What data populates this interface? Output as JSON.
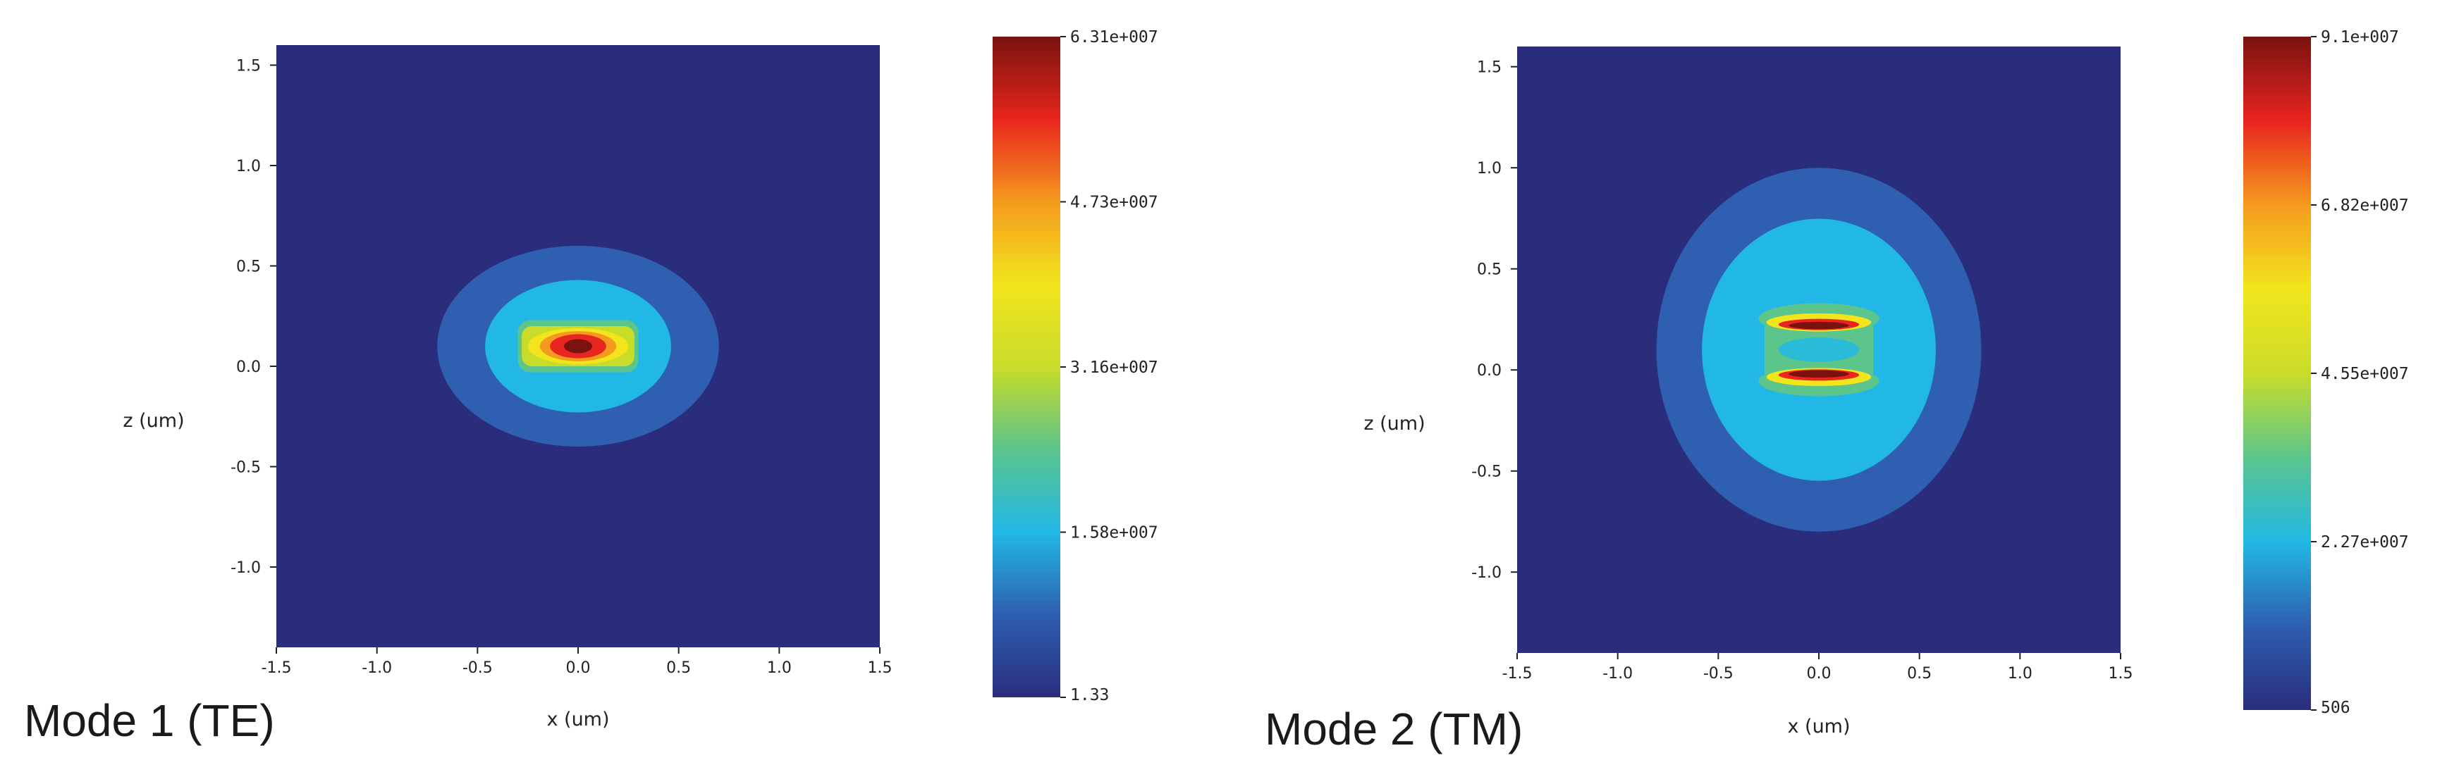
{
  "chart_data": [
    {
      "type": "heatmap",
      "title": "Mode 1 (TE)",
      "xlabel": "x (um)",
      "ylabel": "z (um)",
      "xlim": [
        -1.5,
        1.5
      ],
      "ylim": [
        -1.4,
        1.6
      ],
      "x_ticks": [
        "-1.5",
        "-1.0",
        "-0.5",
        "0.0",
        "0.5",
        "1.0",
        "1.5"
      ],
      "y_ticks": [
        "1.5",
        "1.0",
        "0.5",
        "0.0",
        "-0.5",
        "-1.0"
      ],
      "colorbar": {
        "min": 1.33,
        "max": 63100000,
        "ticks": [
          "6.31e+007",
          "4.73e+007",
          "3.16e+007",
          "1.58e+007",
          "1.33"
        ]
      },
      "colormap": [
        "#2a2d7c",
        "#2e5fb0",
        "#22b8e6",
        "#5bc58c",
        "#c9dc2a",
        "#f2e51c",
        "#f59a1e",
        "#e8251e",
        "#7a1210"
      ],
      "field": {
        "center": [
          0.0,
          0.1
        ],
        "peak": 63100000,
        "core_halfwidth": [
          0.3,
          0.11
        ],
        "halo_extent": [
          0.7,
          0.5
        ]
      }
    },
    {
      "type": "heatmap",
      "title": "Mode 2 (TM)",
      "xlabel": "x (um)",
      "ylabel": "z (um)",
      "xlim": [
        -1.5,
        1.5
      ],
      "ylim": [
        -1.4,
        1.6
      ],
      "x_ticks": [
        "-1.5",
        "-1.0",
        "-0.5",
        "0.0",
        "0.5",
        "1.0",
        "1.5"
      ],
      "y_ticks": [
        "1.5",
        "1.0",
        "0.5",
        "0.0",
        "-0.5",
        "-1.0"
      ],
      "colorbar": {
        "min": 506,
        "max": 91000000,
        "ticks": [
          "9.1e+007",
          "6.82e+007",
          "4.55e+007",
          "2.27e+007",
          "506"
        ]
      },
      "colormap": [
        "#2a2d7c",
        "#2e5fb0",
        "#22b8e6",
        "#5bc58c",
        "#c9dc2a",
        "#f2e51c",
        "#f59a1e",
        "#e8251e",
        "#7a1210"
      ],
      "field": {
        "lobes": [
          {
            "center": [
              0.0,
              0.22
            ],
            "peak": 91000000
          },
          {
            "center": [
              0.0,
              -0.02
            ],
            "peak": 91000000
          }
        ],
        "halo_extent": [
          0.85,
          0.9
        ]
      }
    }
  ]
}
